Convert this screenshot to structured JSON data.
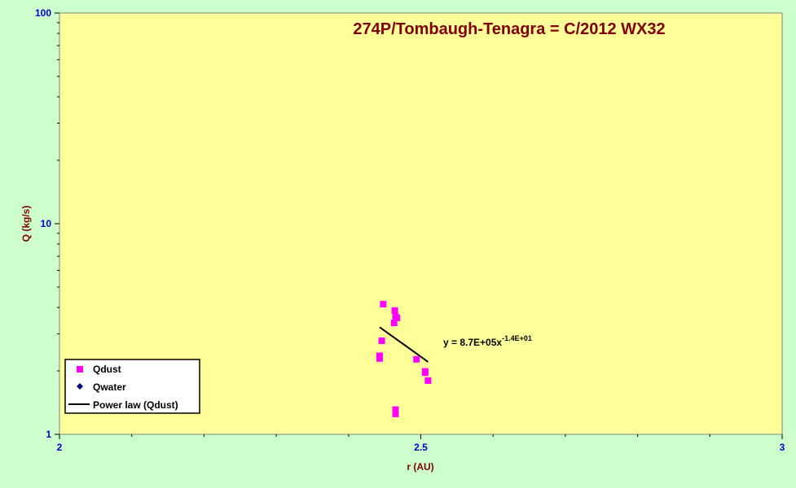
{
  "colors": {
    "page_background": "#ccffcc",
    "plot_background": "#ffff99",
    "title": "#800000",
    "axis_label": "#800000",
    "tick_label": "#0000cc",
    "qdust": "#ff00ff",
    "qwater": "#000080",
    "fit_line": "#000000"
  },
  "chart_data": {
    "type": "scatter",
    "title": "274P/Tombaugh-Tenagra = C/2012 WX32",
    "xlabel": "r (AU)",
    "ylabel": "Q (kg/s)",
    "xlim": [
      2,
      3
    ],
    "ylim": [
      1,
      100
    ],
    "y_scale": "log",
    "x_ticks": [
      {
        "value": 2,
        "label": "2"
      },
      {
        "value": 2.5,
        "label": "2.5"
      },
      {
        "value": 3,
        "label": "3"
      }
    ],
    "x_minor_ticks": [
      2.1,
      2.2,
      2.3,
      2.4,
      2.6,
      2.7,
      2.8,
      2.9
    ],
    "y_ticks": [
      {
        "value": 1,
        "label": "1"
      },
      {
        "value": 10,
        "label": "10"
      },
      {
        "value": 100,
        "label": "100"
      }
    ],
    "y_minor_ticks": [
      2,
      3,
      4,
      5,
      6,
      7,
      8,
      9,
      20,
      30,
      40,
      50,
      60,
      70,
      80,
      90
    ],
    "series": [
      {
        "name": "Qdust",
        "marker": "square",
        "color": "#ff00ff",
        "points": [
          {
            "x": 2.448,
            "y": 4.15
          },
          {
            "x": 2.464,
            "y": 3.87
          },
          {
            "x": 2.465,
            "y": 3.62
          },
          {
            "x": 2.467,
            "y": 3.57
          },
          {
            "x": 2.463,
            "y": 3.38
          },
          {
            "x": 2.446,
            "y": 2.78
          },
          {
            "x": 2.443,
            "y": 2.36
          },
          {
            "x": 2.443,
            "y": 2.29
          },
          {
            "x": 2.494,
            "y": 2.27
          },
          {
            "x": 2.506,
            "y": 1.99
          },
          {
            "x": 2.506,
            "y": 1.96
          },
          {
            "x": 2.51,
            "y": 1.8
          },
          {
            "x": 2.465,
            "y": 1.31
          },
          {
            "x": 2.465,
            "y": 1.25
          }
        ]
      },
      {
        "name": "Qwater",
        "marker": "diamond",
        "color": "#000080",
        "points": []
      }
    ],
    "trendline": {
      "name": "Power law (Qdust)",
      "series": "Qdust",
      "x_range": [
        2.443,
        2.51
      ],
      "equation_prefix": "y = 8.7E+05x",
      "equation_exponent": "-1.4E+01",
      "a": 870000,
      "b": -14
    },
    "legend": {
      "position": "bottom-left",
      "entries": [
        "Qdust",
        "Qwater",
        "Power law (Qdust)"
      ]
    },
    "grid": false
  }
}
